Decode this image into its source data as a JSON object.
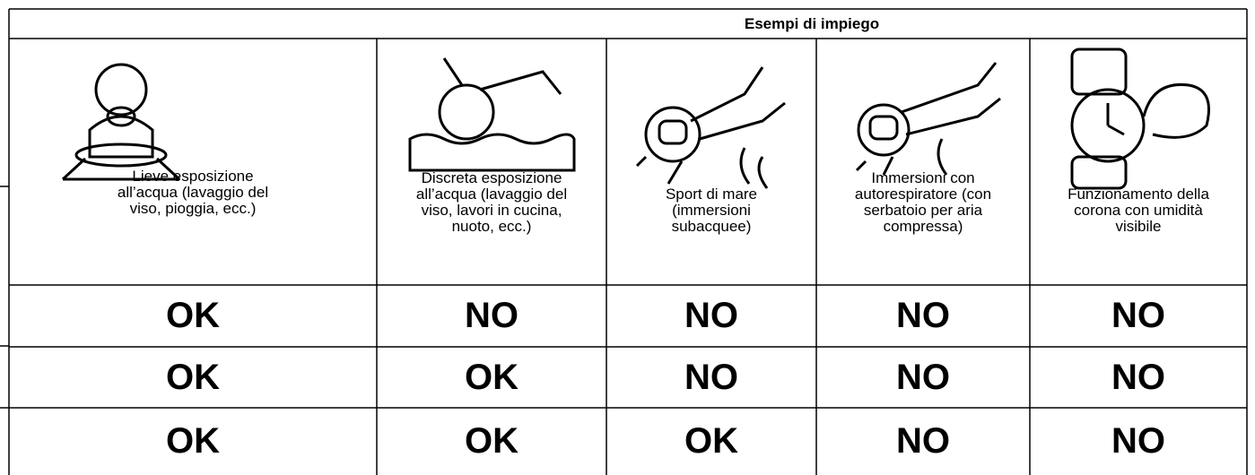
{
  "header": {
    "title": "Esempi di impiego"
  },
  "columns": [
    {
      "label": [
        "Lieve esposizione",
        "all’acqua (lavaggio del",
        "viso, pioggia, ecc.)"
      ]
    },
    {
      "label": [
        "Discreta esposizione",
        "all’acqua (lavaggio del",
        "viso, lavori in cucina,",
        "nuoto, ecc.)"
      ]
    },
    {
      "label": [
        "Sport di mare",
        "(immersioni",
        "subacquee)"
      ]
    },
    {
      "label": [
        "Immersioni con",
        "autorespiratore (con",
        "serbatoio per aria",
        "compressa)"
      ]
    },
    {
      "label": [
        "Funzionamento della",
        "corona con umidità",
        "visibile"
      ]
    }
  ],
  "table": {
    "rows": [
      [
        "OK",
        "NO",
        "NO",
        "NO",
        "NO"
      ],
      [
        "OK",
        "OK",
        "NO",
        "NO",
        "NO"
      ],
      [
        "OK",
        "OK",
        "OK",
        "NO",
        "NO"
      ]
    ]
  }
}
